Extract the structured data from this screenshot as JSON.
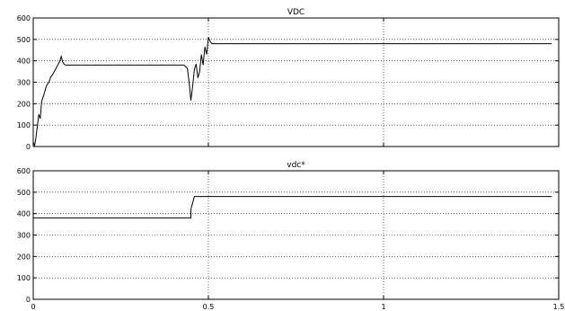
{
  "chart_data": [
    {
      "type": "line",
      "title": "VDC",
      "xlim": [
        0,
        1.5
      ],
      "ylim": [
        0,
        600
      ],
      "grid": true,
      "xticks": [
        0,
        0.5,
        1,
        1.5
      ],
      "yticks": [
        0,
        100,
        200,
        300,
        400,
        500,
        600
      ],
      "x_tick_labels_shown": false,
      "series": [
        {
          "x": [
            0,
            0.004,
            0.008,
            0.012,
            0.016,
            0.02,
            0.024,
            0.028,
            0.032,
            0.036,
            0.04,
            0.045,
            0.05,
            0.055,
            0.06,
            0.065,
            0.07,
            0.075,
            0.08,
            0.084,
            0.088,
            0.092,
            0.1,
            0.15,
            0.2,
            0.25,
            0.3,
            0.35,
            0.4,
            0.43,
            0.44,
            0.445,
            0.45,
            0.455,
            0.46,
            0.465,
            0.47,
            0.475,
            0.48,
            0.485,
            0.49,
            0.495,
            0.5,
            0.505,
            0.51,
            0.52,
            0.55,
            0.6,
            0.65,
            0.7,
            0.75,
            0.8,
            0.85,
            0.9,
            0.95,
            1.0,
            1.05,
            1.1,
            1.15,
            1.2,
            1.25,
            1.3,
            1.35,
            1.4,
            1.45,
            1.48
          ],
          "y": [
            20,
            5,
            45,
            100,
            150,
            130,
            210,
            230,
            250,
            275,
            290,
            300,
            325,
            335,
            350,
            365,
            380,
            395,
            420,
            395,
            385,
            380,
            380,
            380,
            380,
            380,
            380,
            380,
            380,
            380,
            365,
            300,
            215,
            280,
            360,
            385,
            320,
            350,
            430,
            380,
            465,
            430,
            510,
            490,
            480,
            480,
            480,
            480,
            480,
            480,
            480,
            480,
            480,
            480,
            480,
            480,
            480,
            480,
            480,
            480,
            480,
            480,
            480,
            480,
            480,
            480
          ]
        }
      ]
    },
    {
      "type": "line",
      "title": "vdc*",
      "xlim": [
        0,
        1.5
      ],
      "ylim": [
        0,
        600
      ],
      "grid": true,
      "xticks": [
        0,
        0.5,
        1,
        1.5
      ],
      "xtick_labels": [
        "0",
        "0.5",
        "1",
        "1.5"
      ],
      "yticks": [
        0,
        100,
        200,
        300,
        400,
        500,
        600
      ],
      "series": [
        {
          "x": [
            0,
            0.45,
            0.45,
            0.46,
            1.48
          ],
          "y": [
            380,
            380,
            420,
            480,
            480
          ]
        }
      ]
    }
  ]
}
